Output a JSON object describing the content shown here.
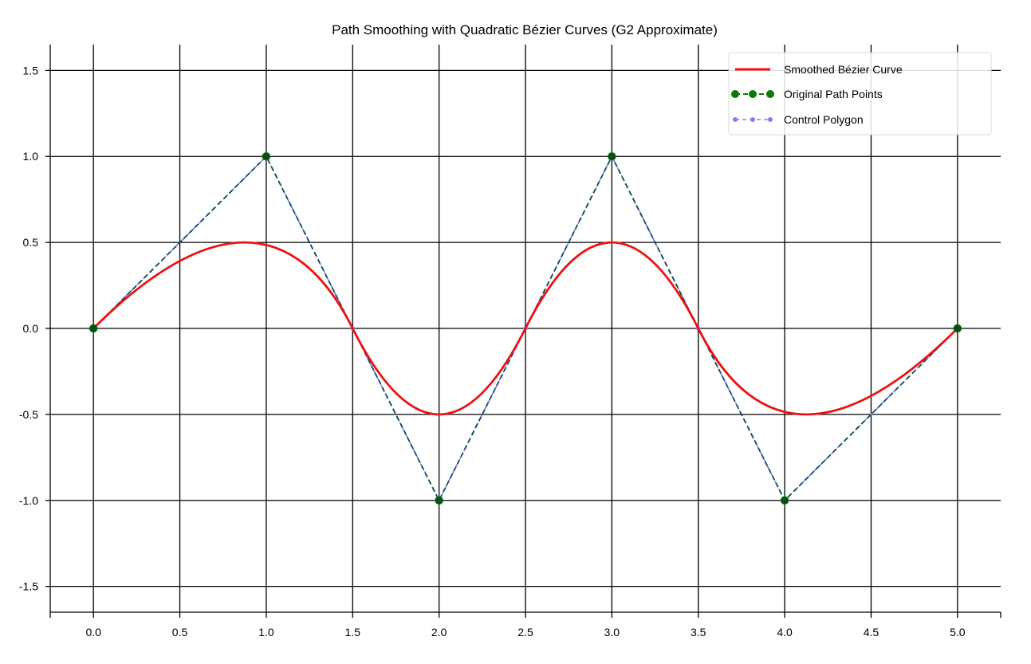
{
  "chart_data": {
    "type": "line",
    "title": "Path Smoothing with Quadratic Bézier Curves (G2 Approximate)",
    "xlabel": "",
    "ylabel": "",
    "xlim": [
      -0.25,
      5.25
    ],
    "ylim": [
      -1.65,
      1.65
    ],
    "xticks": [
      0.0,
      0.5,
      1.0,
      1.5,
      2.0,
      2.5,
      3.0,
      3.5,
      4.0,
      4.5,
      5.0
    ],
    "xtick_labels": [
      "0.0",
      "0.5",
      "1.0",
      "1.5",
      "2.0",
      "2.5",
      "3.0",
      "3.5",
      "4.0",
      "4.5",
      "5.0"
    ],
    "yticks": [
      1.5,
      1.0,
      0.5,
      0.0,
      -0.5,
      -1.0,
      -1.5
    ],
    "ytick_labels": [
      "1.5",
      "1.0",
      "0.5",
      "0.0",
      "-0.5",
      "-1.0",
      "-1.5"
    ],
    "grid": true,
    "legend_position": "top-right",
    "series": [
      {
        "name": "Smoothed Bézier Curve",
        "kind": "quadratic-bezier",
        "color": "#ee1111",
        "segments": [
          {
            "start": [
              0,
              0
            ],
            "control": [
              1,
              1
            ],
            "end": [
              1.5,
              0
            ]
          },
          {
            "start": [
              1.5,
              0
            ],
            "control": [
              2,
              -1
            ],
            "end": [
              2.5,
              0
            ]
          },
          {
            "start": [
              2.5,
              0
            ],
            "control": [
              3,
              1
            ],
            "end": [
              3.5,
              0
            ]
          },
          {
            "start": [
              3.5,
              0
            ],
            "control": [
              4,
              -1
            ],
            "end": [
              5,
              0
            ]
          }
        ]
      },
      {
        "name": "Original Path Points",
        "kind": "line-markers",
        "color": "#0a7a0a",
        "x": [
          0,
          1,
          2,
          3,
          4,
          5
        ],
        "y": [
          0,
          1,
          -1,
          1,
          -1,
          0
        ]
      },
      {
        "name": "Control Polygon",
        "kind": "line-markers",
        "color": "#8080f0",
        "x": [
          0,
          1,
          1.5,
          2,
          2.5,
          3,
          3.5,
          4,
          5
        ],
        "y": [
          0,
          1,
          0,
          -1,
          0,
          1,
          0,
          -1,
          0
        ]
      }
    ]
  }
}
